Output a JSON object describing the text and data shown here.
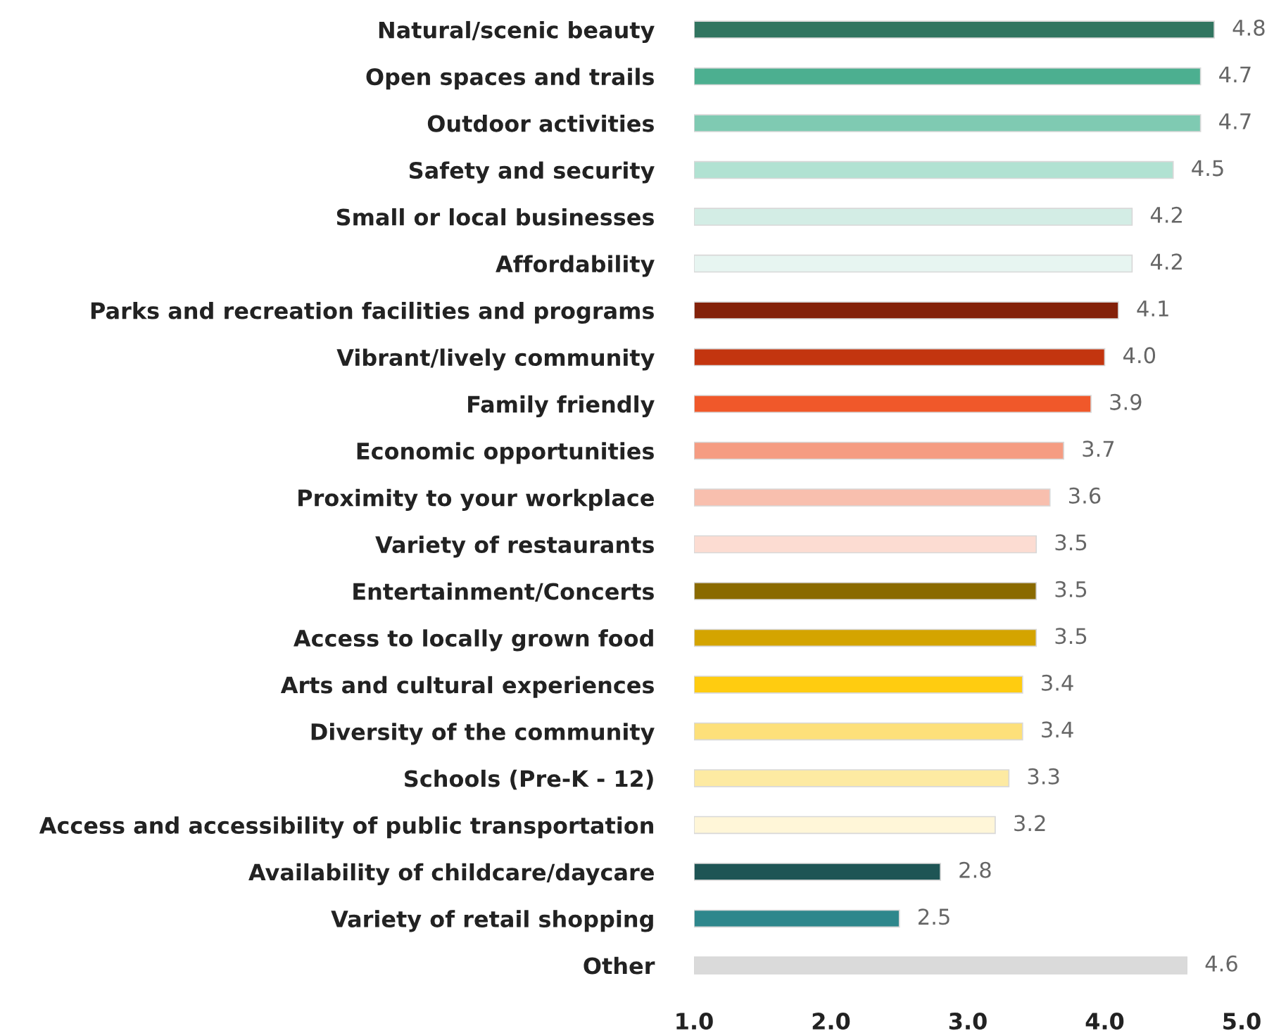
{
  "chart_data": {
    "type": "bar",
    "orientation": "horizontal",
    "data_labels": true,
    "grid": false,
    "legend": false,
    "categories": [
      "Natural/scenic beauty",
      "Open spaces and trails",
      "Outdoor activities",
      "Safety and security",
      "Small or local businesses",
      "Affordability",
      "Parks and recreation facilities and programs",
      "Vibrant/lively community",
      "Family friendly",
      "Economic opportunities",
      "Proximity to your workplace",
      "Variety of restaurants",
      "Entertainment/Concerts",
      "Access to locally grown food",
      "Arts and cultural experiences",
      "Diversity of the community",
      "Schools (Pre-K - 12)",
      "Access and accessibility of public transportation",
      "Availability of childcare/daycare",
      "Variety of retail shopping",
      "Other"
    ],
    "values": [
      4.8,
      4.7,
      4.7,
      4.5,
      4.2,
      4.2,
      4.1,
      4.0,
      3.9,
      3.7,
      3.6,
      3.5,
      3.5,
      3.5,
      3.4,
      3.4,
      3.3,
      3.2,
      2.8,
      2.5,
      4.6
    ],
    "value_labels": [
      "4.8",
      "4.7",
      "4.7",
      "4.5",
      "4.2",
      "4.2",
      "4.1",
      "4.0",
      "3.9",
      "3.7",
      "3.6",
      "3.5",
      "3.5",
      "3.5",
      "3.4",
      "3.4",
      "3.3",
      "3.2",
      "2.8",
      "2.5",
      "4.6"
    ],
    "colors": [
      "#317560",
      "#4caf90",
      "#7fcab2",
      "#b1e2d2",
      "#d3ede5",
      "#e7f5f1",
      "#832109",
      "#c3350f",
      "#f0582a",
      "#f59c82",
      "#f8bfae",
      "#fcdcd2",
      "#8a6a00",
      "#d4a400",
      "#ffcc10",
      "#fde07a",
      "#fdeaa2",
      "#fff6d8",
      "#1e5555",
      "#2e878c",
      "#dadada"
    ],
    "xlim": [
      1.0,
      5.0
    ],
    "xticks": [
      {
        "value": 1.0,
        "label": "1.0"
      },
      {
        "value": 2.0,
        "label": "2.0"
      },
      {
        "value": 3.0,
        "label": "3.0"
      },
      {
        "value": 4.0,
        "label": "4.0"
      },
      {
        "value": 5.0,
        "label": "5.0"
      }
    ]
  }
}
